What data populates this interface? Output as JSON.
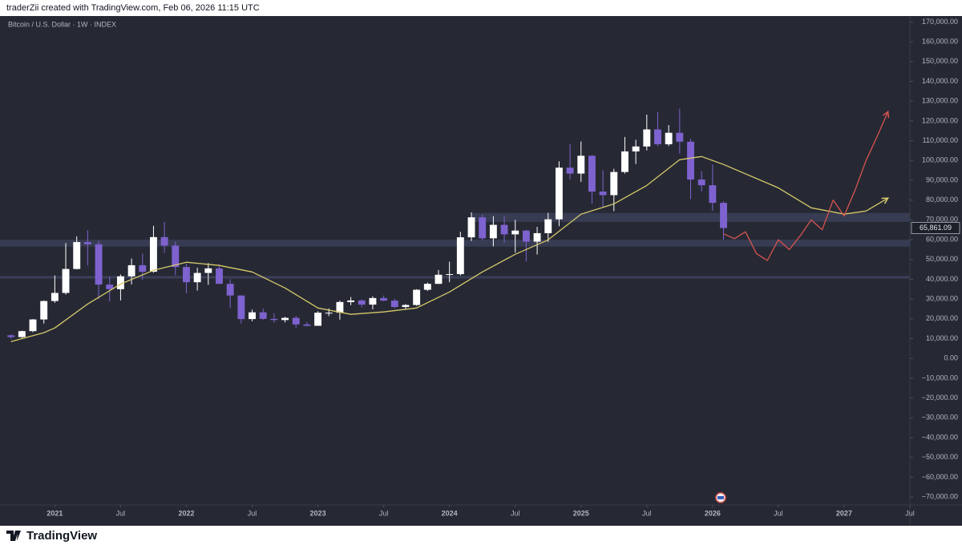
{
  "header": {
    "text": "traderZii created with TradingView.com, Feb 06, 2026 11:15 UTC"
  },
  "footer": {
    "brand": "TradingView"
  },
  "chart_data": {
    "type": "candlestick",
    "subtitle": "Bitcoin / U.S. Dollar · 1W · INDEX",
    "up_color": "#ffffff",
    "down_color": "#7e62cf",
    "xlim": [
      "2020-08",
      "2027-07"
    ],
    "ylim": [
      -74000,
      173000
    ],
    "xticks": [
      {
        "value": "2021-01",
        "label": "2021"
      },
      {
        "value": "2021-07",
        "label": "Jul"
      },
      {
        "value": "2022-01",
        "label": "2022"
      },
      {
        "value": "2022-07",
        "label": "Jul"
      },
      {
        "value": "2023-01",
        "label": "2023"
      },
      {
        "value": "2023-07",
        "label": "Jul"
      },
      {
        "value": "2024-01",
        "label": "2024"
      },
      {
        "value": "2024-07",
        "label": "Jul"
      },
      {
        "value": "2025-01",
        "label": "2025"
      },
      {
        "value": "2025-07",
        "label": "Jul"
      },
      {
        "value": "2026-01",
        "label": "2026"
      },
      {
        "value": "2026-07",
        "label": "Jul"
      },
      {
        "value": "2027-01",
        "label": "2027"
      },
      {
        "value": "2027-07",
        "label": "Jul"
      }
    ],
    "yticks": [
      {
        "value": 170000,
        "label": "170,000.00"
      },
      {
        "value": 160000,
        "label": "160,000.00"
      },
      {
        "value": 150000,
        "label": "150,000.00"
      },
      {
        "value": 140000,
        "label": "140,000.00"
      },
      {
        "value": 130000,
        "label": "130,000.00"
      },
      {
        "value": 120000,
        "label": "120,000.00"
      },
      {
        "value": 110000,
        "label": "110,000.00"
      },
      {
        "value": 100000,
        "label": "100,000.00"
      },
      {
        "value": 90000,
        "label": "90,000.00"
      },
      {
        "value": 80000,
        "label": "80,000.00"
      },
      {
        "value": 70000,
        "label": "70,000.00"
      },
      {
        "value": 60000,
        "label": "60,000.00"
      },
      {
        "value": 50000,
        "label": "50,000.00"
      },
      {
        "value": 40000,
        "label": "40,000.00"
      },
      {
        "value": 30000,
        "label": "30,000.00"
      },
      {
        "value": 20000,
        "label": "20,000.00"
      },
      {
        "value": 10000,
        "label": "10,000.00"
      },
      {
        "value": 0,
        "label": "0.00"
      },
      {
        "value": -10000,
        "label": "−10,000.00"
      },
      {
        "value": -20000,
        "label": "−20,000.00"
      },
      {
        "value": -30000,
        "label": "−30,000.00"
      },
      {
        "value": -40000,
        "label": "−40,000.00"
      },
      {
        "value": -50000,
        "label": "−50,000.00"
      },
      {
        "value": -60000,
        "label": "−60,000.00"
      },
      {
        "value": -70000,
        "label": "−70,000.00"
      }
    ],
    "last_price": {
      "value": 65861.09,
      "label": "65,861.09"
    },
    "candles": {
      "x": [
        "2020-09",
        "2020-10",
        "2020-11",
        "2020-12",
        "2021-01",
        "2021-02",
        "2021-03",
        "2021-04",
        "2021-05",
        "2021-06",
        "2021-07",
        "2021-08",
        "2021-09",
        "2021-10",
        "2021-11",
        "2021-12",
        "2022-01",
        "2022-02",
        "2022-03",
        "2022-04",
        "2022-05",
        "2022-06",
        "2022-07",
        "2022-08",
        "2022-09",
        "2022-10",
        "2022-11",
        "2022-12",
        "2023-01",
        "2023-02",
        "2023-03",
        "2023-04",
        "2023-05",
        "2023-06",
        "2023-07",
        "2023-08",
        "2023-09",
        "2023-10",
        "2023-11",
        "2023-12",
        "2024-01",
        "2024-02",
        "2024-03",
        "2024-04",
        "2024-05",
        "2024-06",
        "2024-07",
        "2024-08",
        "2024-09",
        "2024-10",
        "2024-11",
        "2024-12",
        "2025-01",
        "2025-02",
        "2025-03",
        "2025-04",
        "2025-05",
        "2025-06",
        "2025-07",
        "2025-08",
        "2025-09",
        "2025-10",
        "2025-11",
        "2025-12",
        "2026-01",
        "2026-02"
      ],
      "open": [
        11700,
        10800,
        13800,
        19700,
        29000,
        33100,
        45200,
        58800,
        57700,
        37300,
        35000,
        41500,
        47100,
        43800,
        61300,
        57000,
        46200,
        38500,
        43200,
        45500,
        37700,
        31800,
        19900,
        23300,
        20000,
        19400,
        20500,
        17200,
        16500,
        23100,
        23100,
        28500,
        29300,
        27200,
        30500,
        29200,
        26000,
        27000,
        34700,
        37700,
        42300,
        42600,
        61200,
        71300,
        60700,
        67500,
        62700,
        64600,
        59000,
        63300,
        70300,
        96400,
        93400,
        102400,
        84300,
        82500,
        94200,
        104600,
        107100,
        115700,
        108200,
        114000,
        109500,
        90400,
        87500,
        78600
      ],
      "high": [
        12100,
        14000,
        19900,
        29300,
        41900,
        58300,
        61700,
        64800,
        59500,
        41300,
        42400,
        50500,
        52900,
        67000,
        69000,
        59100,
        47900,
        45800,
        48200,
        47400,
        40000,
        31900,
        24700,
        25200,
        22800,
        21000,
        21500,
        18400,
        23900,
        25300,
        29200,
        31000,
        29900,
        31400,
        31800,
        30200,
        27500,
        35000,
        38400,
        44700,
        48900,
        64000,
        73800,
        72700,
        71900,
        71900,
        70000,
        65000,
        66500,
        73600,
        99600,
        108300,
        109600,
        102700,
        95000,
        95800,
        111900,
        110500,
        123200,
        124400,
        117900,
        126200,
        111000,
        94600,
        97900,
        79300
      ],
      "low": [
        9900,
        10400,
        13200,
        17600,
        28100,
        32300,
        45000,
        47000,
        30000,
        28800,
        29300,
        37400,
        39600,
        43300,
        53300,
        42000,
        32900,
        34300,
        37200,
        37600,
        25400,
        17600,
        18800,
        19600,
        18100,
        18200,
        15500,
        16300,
        16500,
        21400,
        19600,
        26900,
        25800,
        24800,
        28900,
        25300,
        24900,
        26600,
        34100,
        37600,
        38500,
        41900,
        59300,
        59600,
        56600,
        58400,
        53500,
        49000,
        52500,
        58900,
        66800,
        90500,
        89200,
        78200,
        76600,
        74400,
        93400,
        98200,
        105100,
        107300,
        107300,
        103500,
        80500,
        84400,
        74500,
        60000
      ],
      "close": [
        10800,
        13800,
        19700,
        29000,
        33100,
        45200,
        58800,
        57700,
        37300,
        35000,
        41500,
        47100,
        43800,
        61300,
        57000,
        46200,
        38500,
        43200,
        45500,
        37700,
        31800,
        19900,
        23300,
        20000,
        19400,
        20500,
        17200,
        16500,
        23100,
        23100,
        28500,
        29300,
        27200,
        30500,
        29200,
        26000,
        27000,
        34700,
        37700,
        42300,
        42600,
        61200,
        71300,
        60700,
        67500,
        62700,
        64600,
        59000,
        63300,
        70300,
        96400,
        93400,
        102400,
        84300,
        82500,
        94200,
        104600,
        107100,
        115700,
        108200,
        114000,
        109500,
        90400,
        87500,
        78600,
        65900
      ]
    },
    "ma": {
      "color": "#d6c86a",
      "x": [
        "2020-09",
        "2020-12",
        "2021-01",
        "2021-04",
        "2021-07",
        "2021-10",
        "2022-01",
        "2022-04",
        "2022-07",
        "2022-10",
        "2023-01",
        "2023-04",
        "2023-07",
        "2023-10",
        "2024-01",
        "2024-04",
        "2024-07",
        "2024-10",
        "2025-01",
        "2025-04",
        "2025-07",
        "2025-10",
        "2025-12",
        "2026-02",
        "2026-07",
        "2026-10",
        "2027-01",
        "2027-03",
        "2027-05"
      ],
      "values": [
        8500,
        13000,
        15400,
        27500,
        37600,
        44500,
        48600,
        47000,
        43700,
        35600,
        25500,
        22300,
        23500,
        25500,
        33600,
        43700,
        52600,
        59900,
        72900,
        78100,
        87400,
        100400,
        102000,
        98000,
        86200,
        76100,
        72900,
        74500,
        81000
      ]
    },
    "projection": {
      "color": "#d9534f",
      "x": [
        "2026-02",
        "2026-03",
        "2026-04",
        "2026-05",
        "2026-06",
        "2026-07",
        "2026-08",
        "2026-09",
        "2026-10",
        "2026-11",
        "2026-12",
        "2027-01",
        "2027-02",
        "2027-03",
        "2027-04",
        "2027-05"
      ],
      "values": [
        63000,
        60500,
        64000,
        53000,
        49500,
        60000,
        55000,
        62000,
        70000,
        65000,
        80000,
        72000,
        85000,
        100000,
        112000,
        124700
      ]
    },
    "zones": [
      {
        "from": 69000,
        "to": 73500,
        "start": "2024-03"
      },
      {
        "from": 56500,
        "to": 60000,
        "start": "2020-08"
      }
    ],
    "levels": [
      {
        "value": 41000,
        "start": "2020-08"
      }
    ]
  }
}
